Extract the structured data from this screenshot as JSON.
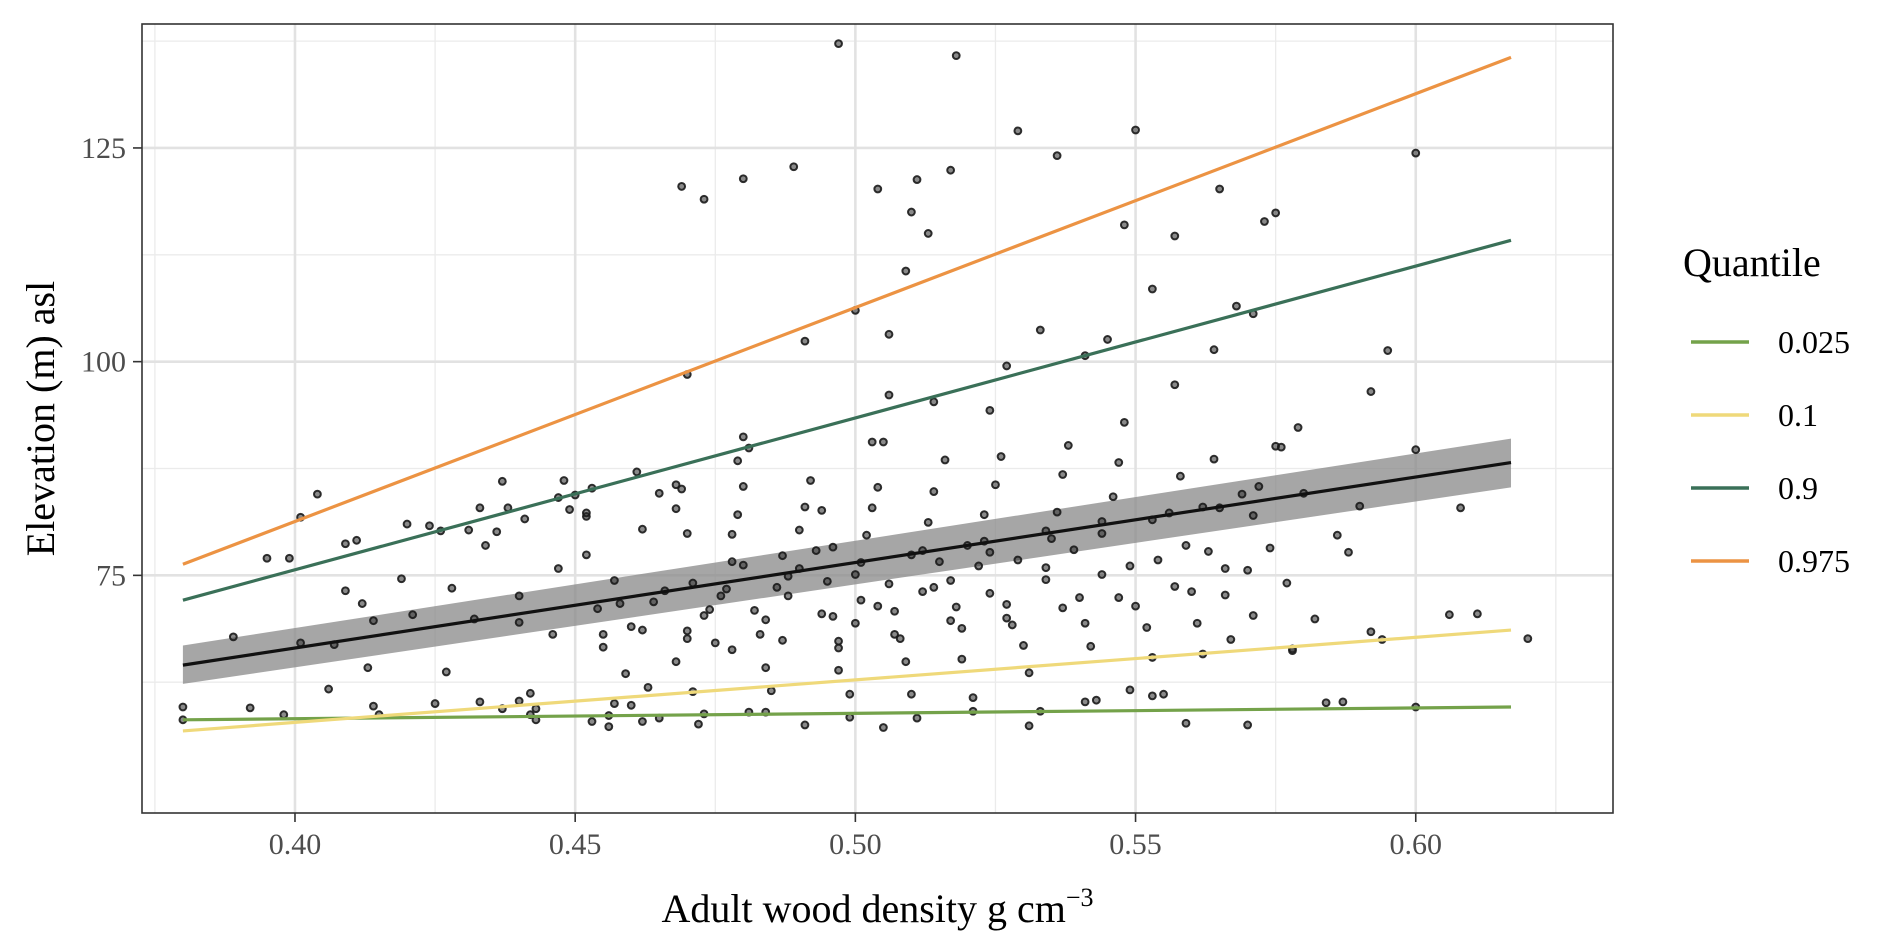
{
  "chart_data": {
    "type": "scatter",
    "title": "",
    "xlabel": "Adult wood density g cm",
    "xlabel_superscript": "−3",
    "ylabel": "Elevation (m) asl",
    "xlim": [
      0.3727,
      0.6352
    ],
    "ylim": [
      47.2,
      139.5
    ],
    "x_ticks": [
      0.4,
      0.45,
      0.5,
      0.55,
      0.6
    ],
    "x_tick_labels": [
      "0.40",
      "0.45",
      "0.50",
      "0.55",
      "0.60"
    ],
    "y_ticks": [
      75,
      100,
      125
    ],
    "y_tick_labels": [
      "75",
      "100",
      "125"
    ],
    "grid": true,
    "legend": {
      "title": "Quantile",
      "position": "right",
      "entries": [
        {
          "label": "0.025",
          "color": "#74a24a"
        },
        {
          "label": "0.1",
          "color": "#efd97a"
        },
        {
          "label": "0.9",
          "color": "#3a7058"
        },
        {
          "label": "0.975",
          "color": "#ec9343"
        }
      ]
    },
    "lines": [
      {
        "name": "0.025",
        "color": "#74a24a",
        "x": [
          0.38,
          0.617
        ],
        "y": [
          58.1,
          59.6
        ]
      },
      {
        "name": "0.1",
        "color": "#efd97a",
        "x": [
          0.38,
          0.617
        ],
        "y": [
          56.8,
          68.6
        ]
      },
      {
        "name": "0.9",
        "color": "#3a7058",
        "x": [
          0.38,
          0.617
        ],
        "y": [
          72.1,
          114.2
        ]
      },
      {
        "name": "0.975",
        "color": "#ec9343",
        "x": [
          0.38,
          0.617
        ],
        "y": [
          76.3,
          135.6
        ]
      }
    ],
    "regression": {
      "color": "#111111",
      "band_color": "#888888",
      "x": [
        0.38,
        0.617
      ],
      "y": [
        64.5,
        88.2
      ],
      "lower": [
        62.3,
        85.3
      ],
      "upper": [
        66.8,
        91.0
      ]
    },
    "points": [
      [
        0.38,
        58.1
      ],
      [
        0.38,
        59.6
      ],
      [
        0.389,
        67.8
      ],
      [
        0.392,
        59.5
      ],
      [
        0.398,
        58.7
      ],
      [
        0.395,
        77.0
      ],
      [
        0.399,
        77.0
      ],
      [
        0.401,
        81.8
      ],
      [
        0.404,
        84.5
      ],
      [
        0.401,
        67.1
      ],
      [
        0.407,
        66.9
      ],
      [
        0.406,
        61.7
      ],
      [
        0.409,
        73.2
      ],
      [
        0.409,
        78.7
      ],
      [
        0.411,
        79.1
      ],
      [
        0.412,
        71.7
      ],
      [
        0.413,
        64.2
      ],
      [
        0.414,
        59.7
      ],
      [
        0.415,
        58.7
      ],
      [
        0.414,
        69.7
      ],
      [
        0.419,
        74.6
      ],
      [
        0.421,
        70.4
      ],
      [
        0.425,
        60.0
      ],
      [
        0.427,
        63.7
      ],
      [
        0.428,
        73.5
      ],
      [
        0.424,
        80.8
      ],
      [
        0.431,
        80.3
      ],
      [
        0.432,
        69.9
      ],
      [
        0.433,
        60.2
      ],
      [
        0.434,
        78.5
      ],
      [
        0.436,
        80.1
      ],
      [
        0.438,
        82.9
      ],
      [
        0.44,
        72.6
      ],
      [
        0.44,
        69.5
      ],
      [
        0.442,
        61.2
      ],
      [
        0.44,
        60.3
      ],
      [
        0.442,
        58.7
      ],
      [
        0.443,
        59.4
      ],
      [
        0.446,
        68.1
      ],
      [
        0.447,
        75.8
      ],
      [
        0.449,
        82.7
      ],
      [
        0.45,
        84.4
      ],
      [
        0.448,
        86.1
      ],
      [
        0.452,
        81.9
      ],
      [
        0.453,
        85.2
      ],
      [
        0.452,
        77.4
      ],
      [
        0.454,
        71.1
      ],
      [
        0.455,
        68.1
      ],
      [
        0.457,
        60.0
      ],
      [
        0.456,
        58.6
      ],
      [
        0.455,
        66.6
      ],
      [
        0.457,
        74.4
      ],
      [
        0.459,
        63.5
      ],
      [
        0.46,
        59.8
      ],
      [
        0.462,
        57.9
      ],
      [
        0.463,
        61.9
      ],
      [
        0.462,
        68.6
      ],
      [
        0.464,
        71.9
      ],
      [
        0.462,
        80.4
      ],
      [
        0.465,
        84.6
      ],
      [
        0.468,
        82.8
      ],
      [
        0.469,
        85.1
      ],
      [
        0.47,
        79.9
      ],
      [
        0.471,
        74.1
      ],
      [
        0.473,
        70.3
      ],
      [
        0.47,
        67.6
      ],
      [
        0.468,
        64.9
      ],
      [
        0.471,
        61.4
      ],
      [
        0.473,
        58.8
      ],
      [
        0.475,
        67.1
      ],
      [
        0.477,
        73.4
      ],
      [
        0.478,
        76.6
      ],
      [
        0.478,
        79.8
      ],
      [
        0.479,
        82.1
      ],
      [
        0.48,
        85.4
      ],
      [
        0.479,
        88.4
      ],
      [
        0.481,
        89.9
      ],
      [
        0.482,
        70.9
      ],
      [
        0.483,
        68.1
      ],
      [
        0.484,
        64.2
      ],
      [
        0.485,
        61.5
      ],
      [
        0.484,
        59.0
      ],
      [
        0.487,
        77.3
      ],
      [
        0.488,
        74.9
      ],
      [
        0.488,
        72.6
      ],
      [
        0.49,
        80.3
      ],
      [
        0.491,
        83.0
      ],
      [
        0.492,
        86.1
      ],
      [
        0.494,
        82.6
      ],
      [
        0.493,
        77.9
      ],
      [
        0.495,
        74.3
      ],
      [
        0.496,
        70.2
      ],
      [
        0.497,
        67.3
      ],
      [
        0.497,
        63.9
      ],
      [
        0.499,
        58.4
      ],
      [
        0.499,
        61.1
      ],
      [
        0.5,
        69.4
      ],
      [
        0.501,
        72.1
      ],
      [
        0.501,
        76.5
      ],
      [
        0.502,
        79.7
      ],
      [
        0.503,
        82.9
      ],
      [
        0.504,
        85.3
      ],
      [
        0.505,
        90.6
      ],
      [
        0.506,
        96.1
      ],
      [
        0.507,
        70.8
      ],
      [
        0.508,
        67.6
      ],
      [
        0.509,
        64.9
      ],
      [
        0.51,
        61.1
      ],
      [
        0.511,
        58.3
      ],
      [
        0.512,
        73.1
      ],
      [
        0.512,
        77.9
      ],
      [
        0.513,
        81.2
      ],
      [
        0.514,
        84.8
      ],
      [
        0.516,
        88.5
      ],
      [
        0.517,
        74.4
      ],
      [
        0.518,
        71.3
      ],
      [
        0.519,
        68.8
      ],
      [
        0.519,
        65.2
      ],
      [
        0.521,
        60.7
      ],
      [
        0.522,
        76.1
      ],
      [
        0.523,
        79.0
      ],
      [
        0.523,
        82.1
      ],
      [
        0.525,
        85.6
      ],
      [
        0.526,
        88.9
      ],
      [
        0.527,
        71.6
      ],
      [
        0.528,
        69.2
      ],
      [
        0.53,
        66.8
      ],
      [
        0.531,
        63.6
      ],
      [
        0.533,
        59.1
      ],
      [
        0.534,
        75.9
      ],
      [
        0.535,
        79.3
      ],
      [
        0.536,
        82.4
      ],
      [
        0.537,
        86.8
      ],
      [
        0.538,
        90.2
      ],
      [
        0.54,
        72.4
      ],
      [
        0.541,
        69.4
      ],
      [
        0.542,
        66.7
      ],
      [
        0.543,
        60.4
      ],
      [
        0.544,
        79.9
      ],
      [
        0.546,
        84.2
      ],
      [
        0.547,
        88.2
      ],
      [
        0.548,
        92.9
      ],
      [
        0.549,
        76.1
      ],
      [
        0.55,
        71.4
      ],
      [
        0.552,
        68.9
      ],
      [
        0.553,
        65.4
      ],
      [
        0.555,
        61.1
      ],
      [
        0.556,
        82.3
      ],
      [
        0.558,
        86.6
      ],
      [
        0.559,
        78.5
      ],
      [
        0.56,
        73.1
      ],
      [
        0.561,
        69.4
      ],
      [
        0.562,
        65.8
      ],
      [
        0.564,
        88.6
      ],
      [
        0.565,
        82.9
      ],
      [
        0.566,
        72.7
      ],
      [
        0.567,
        67.5
      ],
      [
        0.569,
        84.5
      ],
      [
        0.57,
        75.6
      ],
      [
        0.571,
        70.3
      ],
      [
        0.572,
        85.4
      ],
      [
        0.574,
        78.2
      ],
      [
        0.575,
        90.1
      ],
      [
        0.577,
        74.1
      ],
      [
        0.578,
        66.4
      ],
      [
        0.58,
        84.6
      ],
      [
        0.582,
        69.9
      ],
      [
        0.584,
        60.1
      ],
      [
        0.586,
        79.7
      ],
      [
        0.588,
        77.7
      ],
      [
        0.59,
        83.1
      ],
      [
        0.592,
        68.4
      ],
      [
        0.594,
        67.5
      ],
      [
        0.6,
        89.7
      ],
      [
        0.606,
        70.4
      ],
      [
        0.608,
        82.9
      ],
      [
        0.611,
        70.5
      ],
      [
        0.62,
        67.6
      ],
      [
        0.469,
        120.5
      ],
      [
        0.473,
        119.0
      ],
      [
        0.48,
        121.4
      ],
      [
        0.489,
        122.8
      ],
      [
        0.491,
        102.4
      ],
      [
        0.497,
        137.2
      ],
      [
        0.5,
        106.0
      ],
      [
        0.504,
        120.2
      ],
      [
        0.51,
        117.5
      ],
      [
        0.511,
        121.3
      ],
      [
        0.513,
        115.0
      ],
      [
        0.517,
        122.4
      ],
      [
        0.518,
        135.8
      ],
      [
        0.529,
        127.0
      ],
      [
        0.536,
        124.1
      ],
      [
        0.548,
        116.0
      ],
      [
        0.55,
        127.1
      ],
      [
        0.553,
        108.5
      ],
      [
        0.557,
        114.7
      ],
      [
        0.565,
        120.2
      ],
      [
        0.573,
        116.4
      ],
      [
        0.575,
        117.4
      ],
      [
        0.6,
        124.4
      ],
      [
        0.595,
        101.3
      ],
      [
        0.592,
        96.5
      ],
      [
        0.576,
        90.0
      ],
      [
        0.579,
        92.3
      ],
      [
        0.568,
        106.5
      ],
      [
        0.571,
        105.6
      ],
      [
        0.564,
        101.4
      ],
      [
        0.557,
        97.3
      ],
      [
        0.545,
        102.6
      ],
      [
        0.541,
        100.7
      ],
      [
        0.533,
        103.7
      ],
      [
        0.527,
        99.5
      ],
      [
        0.524,
        94.3
      ],
      [
        0.514,
        95.3
      ],
      [
        0.509,
        110.6
      ],
      [
        0.506,
        103.2
      ],
      [
        0.503,
        90.6
      ],
      [
        0.47,
        98.5
      ],
      [
        0.48,
        91.2
      ],
      [
        0.461,
        87.1
      ],
      [
        0.468,
        85.6
      ],
      [
        0.452,
        82.3
      ],
      [
        0.441,
        81.6
      ],
      [
        0.426,
        80.2
      ],
      [
        0.42,
        81.0
      ],
      [
        0.433,
        82.9
      ],
      [
        0.437,
        86.0
      ],
      [
        0.447,
        84.1
      ],
      [
        0.437,
        59.4
      ],
      [
        0.443,
        58.1
      ],
      [
        0.453,
        57.9
      ],
      [
        0.456,
        57.3
      ],
      [
        0.465,
        58.3
      ],
      [
        0.472,
        57.6
      ],
      [
        0.481,
        59.0
      ],
      [
        0.491,
        57.5
      ],
      [
        0.505,
        57.2
      ],
      [
        0.521,
        59.1
      ],
      [
        0.531,
        57.4
      ],
      [
        0.541,
        60.2
      ],
      [
        0.549,
        61.6
      ],
      [
        0.553,
        60.9
      ],
      [
        0.559,
        57.7
      ],
      [
        0.57,
        57.5
      ],
      [
        0.578,
        66.2
      ],
      [
        0.587,
        60.2
      ],
      [
        0.6,
        59.6
      ],
      [
        0.458,
        71.7
      ],
      [
        0.466,
        73.2
      ],
      [
        0.476,
        72.6
      ],
      [
        0.486,
        73.6
      ],
      [
        0.496,
        78.3
      ],
      [
        0.506,
        74.0
      ],
      [
        0.515,
        76.6
      ],
      [
        0.524,
        77.7
      ],
      [
        0.534,
        80.2
      ],
      [
        0.544,
        81.3
      ],
      [
        0.553,
        81.5
      ],
      [
        0.562,
        83.0
      ],
      [
        0.571,
        82.0
      ],
      [
        0.48,
        76.2
      ],
      [
        0.49,
        75.8
      ],
      [
        0.5,
        75.1
      ],
      [
        0.51,
        77.4
      ],
      [
        0.52,
        78.5
      ],
      [
        0.529,
        76.8
      ],
      [
        0.539,
        78.0
      ],
      [
        0.474,
        71.0
      ],
      [
        0.484,
        69.8
      ],
      [
        0.494,
        70.5
      ],
      [
        0.504,
        71.4
      ],
      [
        0.514,
        73.6
      ],
      [
        0.524,
        72.9
      ],
      [
        0.534,
        74.5
      ],
      [
        0.544,
        75.1
      ],
      [
        0.554,
        76.8
      ],
      [
        0.563,
        77.8
      ],
      [
        0.46,
        69.0
      ],
      [
        0.47,
        68.5
      ],
      [
        0.478,
        66.3
      ],
      [
        0.487,
        67.4
      ],
      [
        0.497,
        66.5
      ],
      [
        0.507,
        68.1
      ],
      [
        0.517,
        69.7
      ],
      [
        0.527,
        70.0
      ],
      [
        0.537,
        71.2
      ],
      [
        0.547,
        72.4
      ],
      [
        0.557,
        73.7
      ],
      [
        0.566,
        75.8
      ]
    ]
  }
}
